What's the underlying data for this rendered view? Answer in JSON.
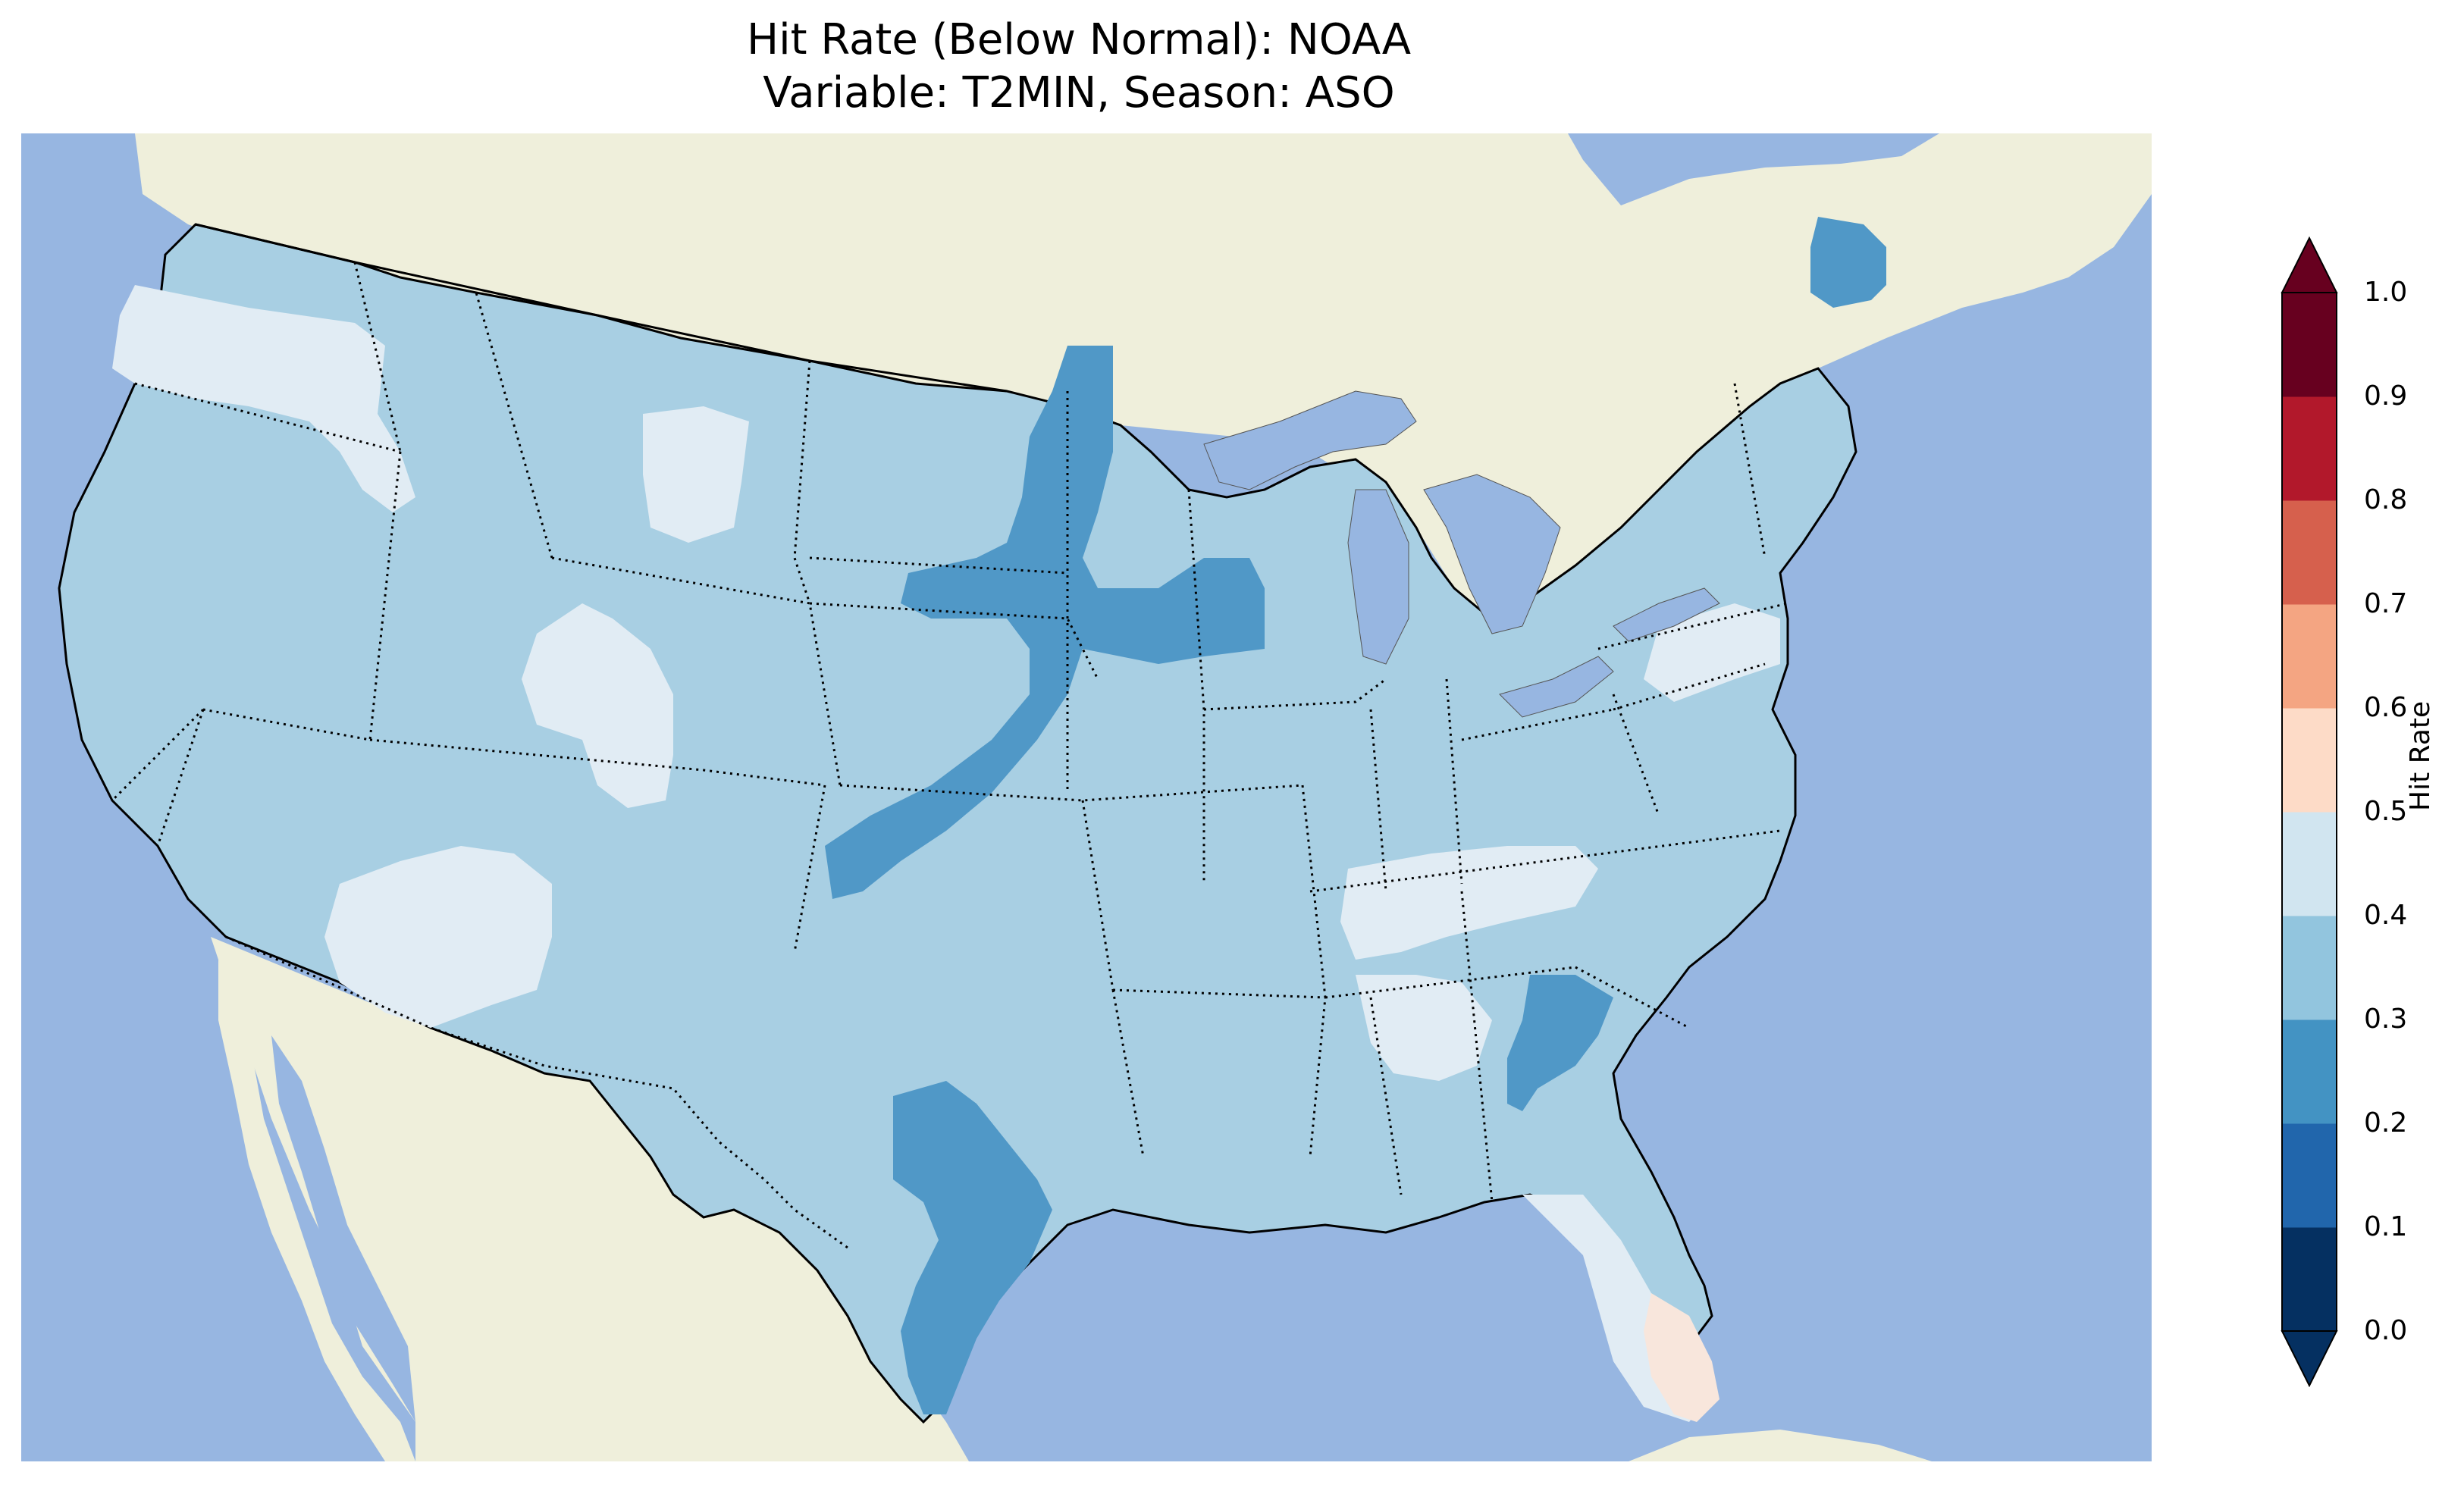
{
  "title": {
    "line1": "Hit Rate (Below Normal): NOAA",
    "line2": "Variable: T2MIN, Season: ASO"
  },
  "colorbar": {
    "label": "Hit Rate",
    "ticks": [
      "0.0",
      "0.1",
      "0.2",
      "0.3",
      "0.4",
      "0.5",
      "0.6",
      "0.7",
      "0.8",
      "0.9",
      "1.0"
    ],
    "bins": [
      {
        "range": [
          0.0,
          0.1
        ],
        "color": "#053061"
      },
      {
        "range": [
          0.1,
          0.2
        ],
        "color": "#2166ac"
      },
      {
        "range": [
          0.2,
          0.3
        ],
        "color": "#4393c3"
      },
      {
        "range": [
          0.3,
          0.4
        ],
        "color": "#92c5de"
      },
      {
        "range": [
          0.4,
          0.5
        ],
        "color": "#d1e5f0"
      },
      {
        "range": [
          0.5,
          0.6
        ],
        "color": "#fddbc7"
      },
      {
        "range": [
          0.6,
          0.7
        ],
        "color": "#f4a582"
      },
      {
        "range": [
          0.7,
          0.8
        ],
        "color": "#d6604d"
      },
      {
        "range": [
          0.8,
          0.9
        ],
        "color": "#b2182b"
      },
      {
        "range": [
          0.9,
          1.0
        ],
        "color": "#67001f"
      }
    ],
    "extend": "both"
  },
  "map": {
    "ocean_color": "#97b6e1",
    "land_color": "#efefdb",
    "fill_shading": {
      "background_bin": "0.3-0.4",
      "lower_regions_bin": "0.2-0.3",
      "higher_regions_bin": "0.4-0.5",
      "highest_regions_bin": "0.5-0.6"
    }
  }
}
